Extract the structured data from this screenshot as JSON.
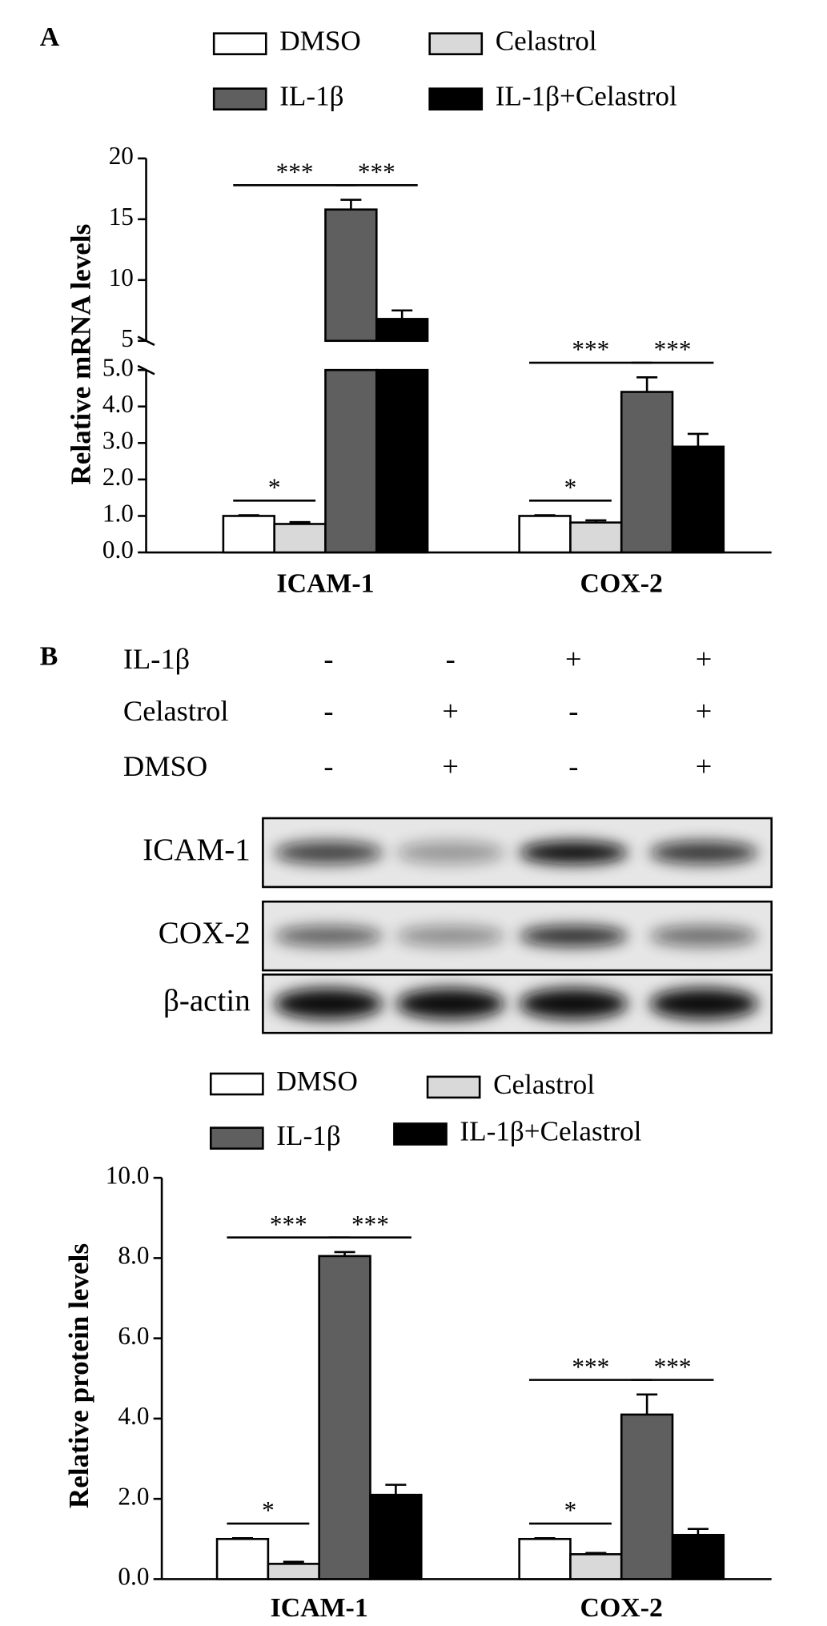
{
  "panels": [
    "A",
    "B"
  ],
  "chart_data": [
    {
      "type": "bar",
      "ylabel": "Relative mRNA levels",
      "categories": [
        "ICAM-1",
        "COX-2"
      ],
      "series": [
        {
          "name": "DMSO",
          "color": "#ffffff",
          "values": [
            1.0,
            1.0
          ],
          "errors": [
            0.02,
            0.02
          ]
        },
        {
          "name": "Celastrol",
          "color": "#d9d9d9",
          "values": [
            0.78,
            0.82
          ],
          "errors": [
            0.05,
            0.06
          ]
        },
        {
          "name": "IL-1β",
          "color": "#5f5f5f",
          "values": [
            15.8,
            4.4
          ],
          "errors": [
            0.8,
            0.4
          ]
        },
        {
          "name": "IL-1β+Celastrol",
          "color": "#000000",
          "values": [
            6.8,
            2.9
          ],
          "errors": [
            0.7,
            0.35
          ]
        }
      ],
      "ylim": [
        0,
        20
      ],
      "ybreak": 5,
      "yticks_lower": [
        {
          "value": 0,
          "label": "0.0"
        },
        {
          "value": 1,
          "label": "1.0"
        },
        {
          "value": 2,
          "label": "2.0"
        },
        {
          "value": 3,
          "label": "3.0"
        },
        {
          "value": 4,
          "label": "4.0"
        },
        {
          "value": 5,
          "label": "5.0"
        }
      ],
      "yticks_upper": [
        5,
        10,
        15,
        20
      ],
      "annotations": [
        "*",
        "***",
        "***",
        "*",
        "***",
        "***"
      ]
    },
    {
      "type": "bar",
      "ylabel": "Relative protein levels",
      "categories": [
        "ICAM-1",
        "COX-2"
      ],
      "series": [
        {
          "name": "DMSO",
          "color": "#ffffff",
          "values": [
            1.0,
            1.0
          ],
          "errors": [
            0.02,
            0.02
          ]
        },
        {
          "name": "Celastrol",
          "color": "#d9d9d9",
          "values": [
            0.38,
            0.62
          ],
          "errors": [
            0.05,
            0.03
          ]
        },
        {
          "name": "IL-1β",
          "color": "#5f5f5f",
          "values": [
            8.05,
            4.1
          ],
          "errors": [
            0.1,
            0.5
          ]
        },
        {
          "name": "IL-1β+Celastrol",
          "color": "#000000",
          "values": [
            2.1,
            1.1
          ],
          "errors": [
            0.25,
            0.15
          ]
        }
      ],
      "ylim": [
        0,
        10
      ],
      "yticks": [
        {
          "value": 0,
          "label": "0.0"
        },
        {
          "value": 2,
          "label": "2.0"
        },
        {
          "value": 4,
          "label": "4.0"
        },
        {
          "value": 6,
          "label": "6.0"
        },
        {
          "value": 8,
          "label": "8.0"
        },
        {
          "value": 10,
          "label": "10.0"
        }
      ],
      "annotations": [
        "*",
        "***",
        "***",
        "*",
        "***",
        "***"
      ]
    }
  ],
  "blot": {
    "treatments": [
      {
        "label": "IL-1β",
        "signs": [
          "-",
          "-",
          "+",
          "+"
        ]
      },
      {
        "label": "Celastrol",
        "signs": [
          "-",
          "+",
          "-",
          "+"
        ]
      },
      {
        "label": "DMSO",
        "signs": [
          "-",
          "+",
          "-",
          "+"
        ]
      }
    ],
    "bands": [
      "ICAM-1",
      "COX-2",
      "β-actin"
    ]
  }
}
